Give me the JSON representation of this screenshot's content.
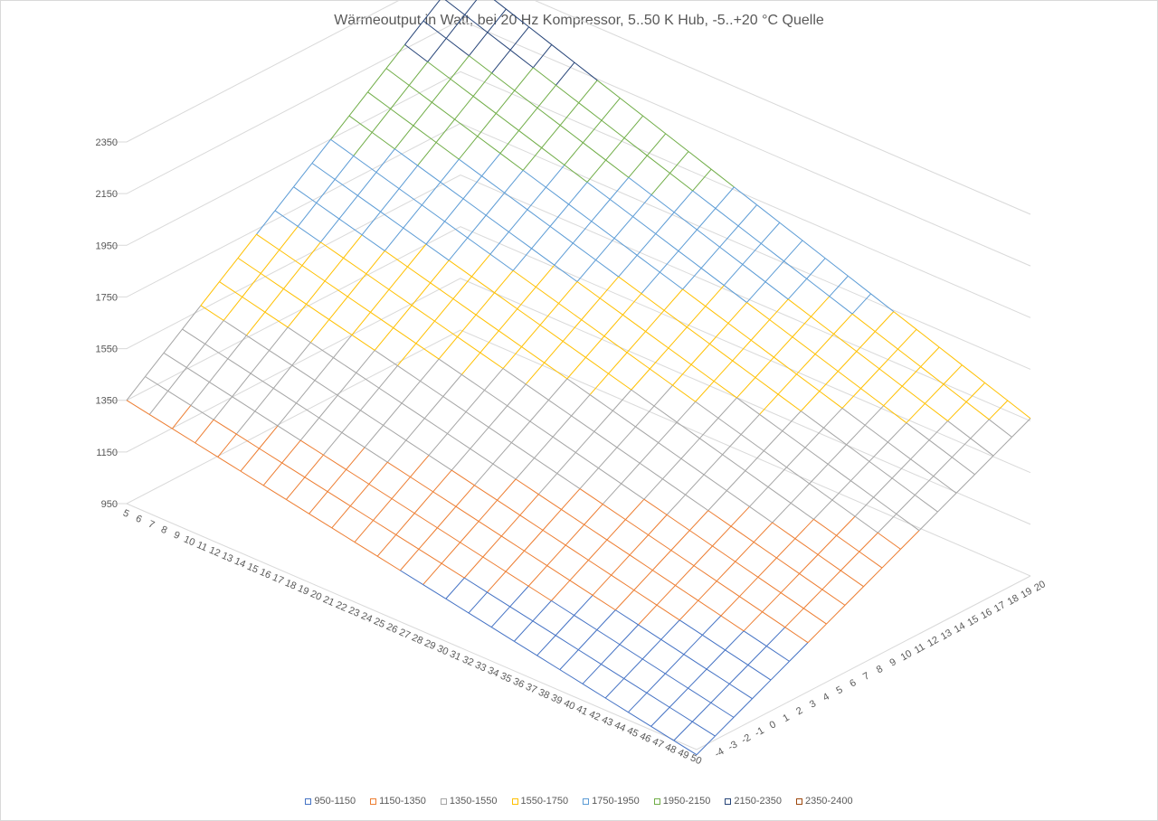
{
  "chart_data": {
    "type": "surface",
    "title": "Wärmeoutput in Watt, bei 20 Hz Kompressor, 5..50 K Hub, -5..+20 °C Quelle",
    "z_ticks": [
      "2350",
      "2150",
      "1950",
      "1750",
      "1550",
      "1350",
      "1150",
      "950"
    ],
    "hub_ticks": [
      "5",
      "6",
      "7",
      "8",
      "9",
      "10",
      "11",
      "12",
      "13",
      "14",
      "15",
      "16",
      "17",
      "18",
      "19",
      "20",
      "21",
      "22",
      "23",
      "24",
      "25",
      "26",
      "27",
      "28",
      "29",
      "30",
      "31",
      "32",
      "33",
      "34",
      "35",
      "36",
      "37",
      "38",
      "39",
      "40",
      "41",
      "42",
      "43",
      "44",
      "45",
      "46",
      "47",
      "48",
      "49",
      "50"
    ],
    "source_ticks": [
      "-4",
      "-3",
      "-2",
      "-1",
      "0",
      "1",
      "2",
      "3",
      "4",
      "5",
      "6",
      "7",
      "8",
      "9",
      "10",
      "11",
      "12",
      "13",
      "14",
      "15",
      "16",
      "17",
      "18",
      "19",
      "20"
    ],
    "hub_range": [
      5,
      50
    ],
    "source_range": [
      -5,
      20
    ],
    "zlim": [
      950,
      2400
    ],
    "corner_values": {
      "hub5_src_minus5": 1350,
      "hub5_src20": 2330,
      "hub50_src_minus5": 930,
      "hub50_src20": 1560
    },
    "legend": [
      {
        "label": "950-1150",
        "color": "#4472c4"
      },
      {
        "label": "1150-1350",
        "color": "#ed7d31"
      },
      {
        "label": "1350-1550",
        "color": "#a5a5a5"
      },
      {
        "label": "1550-1750",
        "color": "#ffc000"
      },
      {
        "label": "1750-1950",
        "color": "#5b9bd5"
      },
      {
        "label": "1950-2150",
        "color": "#70ad47"
      },
      {
        "label": "2150-2350",
        "color": "#264478"
      },
      {
        "label": "2350-2400",
        "color": "#9e480e"
      }
    ],
    "legend_placement": "bottom"
  }
}
